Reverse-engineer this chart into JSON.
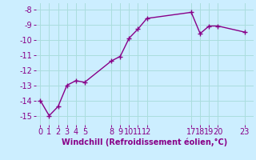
{
  "x": [
    0,
    1,
    2,
    3,
    4,
    5,
    8,
    9,
    10,
    11,
    12,
    17,
    18,
    19,
    20,
    23
  ],
  "y": [
    -14.0,
    -15.0,
    -14.4,
    -13.0,
    -12.7,
    -12.8,
    -11.4,
    -11.1,
    -9.9,
    -9.3,
    -8.6,
    -8.2,
    -9.6,
    -9.1,
    -9.1,
    -9.5
  ],
  "xticks": [
    0,
    1,
    2,
    3,
    4,
    5,
    8,
    9,
    10,
    11,
    12,
    17,
    18,
    19,
    20,
    23
  ],
  "yticks": [
    -15,
    -14,
    -13,
    -12,
    -11,
    -10,
    -9,
    -8
  ],
  "ylim": [
    -15.6,
    -7.6
  ],
  "xlim": [
    -0.5,
    24.0
  ],
  "xlabel": "Windchill (Refroidissement éolien,°C)",
  "line_color": "#880088",
  "marker": "+",
  "bg_color": "#cceeff",
  "grid_color": "#aadddd",
  "tick_fontsize": 7,
  "xlabel_fontsize": 7
}
